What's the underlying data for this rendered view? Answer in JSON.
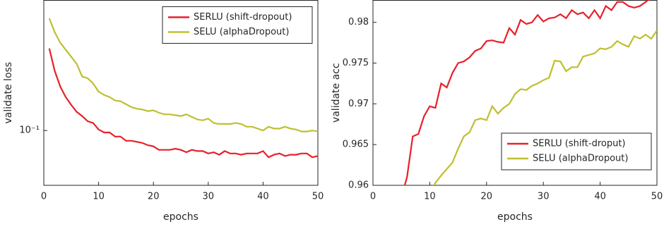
{
  "chart_data": [
    {
      "type": "line",
      "xlabel": "epochs",
      "ylabel": "validate loss",
      "yscale": "log",
      "xlim": [
        0,
        50
      ],
      "xticks": [
        0,
        10,
        20,
        30,
        40,
        50
      ],
      "ylim": [
        0.057,
        0.38
      ],
      "yticks": [
        {
          "value": 0.1,
          "label": "10⁻¹"
        }
      ],
      "legend": "upper right",
      "series": [
        {
          "name": "SERLU (shift-dropout)",
          "color": "#e8202a",
          "x": [
            1,
            2,
            3,
            4,
            5,
            6,
            7,
            8,
            9,
            10,
            11,
            12,
            13,
            14,
            15,
            16,
            17,
            18,
            19,
            20,
            21,
            22,
            23,
            24,
            25,
            26,
            27,
            28,
            29,
            30,
            31,
            32,
            33,
            34,
            35,
            36,
            37,
            38,
            39,
            40,
            41,
            42,
            43,
            44,
            45,
            46,
            47,
            48,
            49,
            50
          ],
          "values": [
            0.232,
            0.184,
            0.157,
            0.141,
            0.13,
            0.121,
            0.116,
            0.11,
            0.108,
            0.101,
            0.098,
            0.098,
            0.094,
            0.094,
            0.09,
            0.09,
            0.089,
            0.088,
            0.086,
            0.085,
            0.082,
            0.082,
            0.082,
            0.083,
            0.082,
            0.08,
            0.082,
            0.081,
            0.081,
            0.079,
            0.08,
            0.078,
            0.081,
            0.079,
            0.079,
            0.078,
            0.079,
            0.079,
            0.079,
            0.081,
            0.076,
            0.078,
            0.079,
            0.077,
            0.078,
            0.078,
            0.079,
            0.079,
            0.076,
            0.077
          ]
        },
        {
          "name": "SELU (alphaDropout)",
          "color": "#bfbf30",
          "x": [
            1,
            2,
            3,
            4,
            5,
            6,
            7,
            8,
            9,
            10,
            11,
            12,
            13,
            14,
            15,
            16,
            17,
            18,
            19,
            20,
            21,
            22,
            23,
            24,
            25,
            26,
            27,
            28,
            29,
            30,
            31,
            32,
            33,
            34,
            35,
            36,
            37,
            38,
            39,
            40,
            41,
            42,
            43,
            44,
            45,
            46,
            47,
            48,
            49,
            50
          ],
          "values": [
            0.316,
            0.274,
            0.246,
            0.229,
            0.213,
            0.198,
            0.174,
            0.171,
            0.162,
            0.149,
            0.144,
            0.141,
            0.136,
            0.135,
            0.131,
            0.127,
            0.125,
            0.124,
            0.122,
            0.123,
            0.12,
            0.118,
            0.118,
            0.117,
            0.116,
            0.118,
            0.115,
            0.112,
            0.111,
            0.113,
            0.108,
            0.107,
            0.107,
            0.107,
            0.108,
            0.107,
            0.104,
            0.104,
            0.102,
            0.1,
            0.104,
            0.102,
            0.102,
            0.104,
            0.102,
            0.101,
            0.099,
            0.099,
            0.1,
            0.099
          ]
        }
      ]
    },
    {
      "type": "line",
      "xlabel": "epochs",
      "ylabel": "validate acc",
      "xlim": [
        0,
        50
      ],
      "xticks": [
        0,
        10,
        20,
        30,
        40,
        50
      ],
      "ylim": [
        0.96,
        0.9827
      ],
      "yticks": [
        0.96,
        0.965,
        0.97,
        0.975,
        0.98
      ],
      "legend": "lower right",
      "series": [
        {
          "name": "SERLU (shift-droput)",
          "color": "#e8202a",
          "x": [
            5,
            6,
            7,
            8,
            9,
            10,
            11,
            12,
            13,
            14,
            15,
            16,
            17,
            18,
            19,
            20,
            21,
            22,
            23,
            24,
            25,
            26,
            27,
            28,
            29,
            30,
            31,
            32,
            33,
            34,
            35,
            36,
            37,
            38,
            39,
            40,
            41,
            42,
            43,
            44,
            45,
            46,
            47,
            48,
            49,
            50
          ],
          "values": [
            0.9585,
            0.961,
            0.966,
            0.9663,
            0.9685,
            0.9697,
            0.9695,
            0.9725,
            0.972,
            0.9738,
            0.975,
            0.9752,
            0.9757,
            0.9765,
            0.9768,
            0.9777,
            0.9778,
            0.9776,
            0.9775,
            0.9793,
            0.9785,
            0.9803,
            0.9798,
            0.98,
            0.9809,
            0.9801,
            0.9805,
            0.9806,
            0.981,
            0.9805,
            0.9815,
            0.981,
            0.9812,
            0.9805,
            0.9815,
            0.9805,
            0.982,
            0.9815,
            0.9825,
            0.9825,
            0.982,
            0.9818,
            0.982,
            0.9825,
            0.983,
            0.983
          ]
        },
        {
          "name": "SELU (alphaDropout)",
          "color": "#bfbf30",
          "x": [
            10,
            11,
            12,
            13,
            14,
            15,
            16,
            17,
            18,
            19,
            20,
            21,
            22,
            23,
            24,
            25,
            26,
            27,
            28,
            29,
            30,
            31,
            32,
            33,
            34,
            35,
            36,
            37,
            38,
            39,
            40,
            41,
            42,
            43,
            44,
            45,
            46,
            47,
            48,
            49,
            50
          ],
          "values": [
            0.959,
            0.9603,
            0.9612,
            0.962,
            0.9628,
            0.9645,
            0.966,
            0.9665,
            0.968,
            0.9682,
            0.968,
            0.9697,
            0.9688,
            0.9695,
            0.97,
            0.9712,
            0.9718,
            0.9717,
            0.9722,
            0.9725,
            0.9729,
            0.9732,
            0.9753,
            0.9752,
            0.974,
            0.9745,
            0.9745,
            0.9758,
            0.976,
            0.9762,
            0.9768,
            0.9767,
            0.977,
            0.9777,
            0.9773,
            0.977,
            0.9783,
            0.978,
            0.9785,
            0.978,
            0.979
          ]
        }
      ]
    }
  ]
}
